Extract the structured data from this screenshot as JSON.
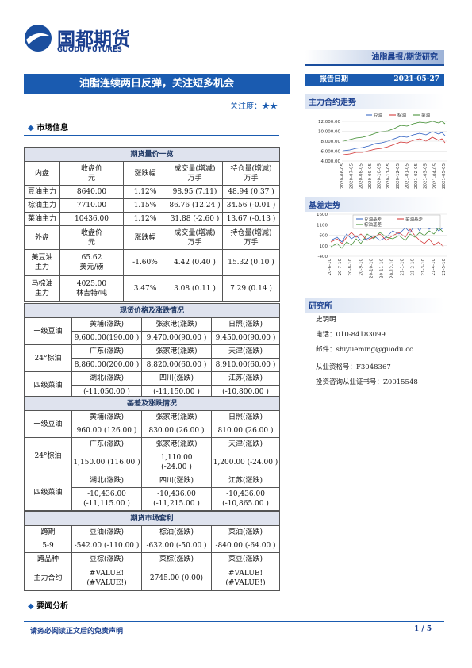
{
  "header": {
    "logo_cn": "国都期货",
    "logo_en": "GUODU FUTURES",
    "column": "油脂晨报/期货研究",
    "date_label": "报告日期",
    "date": "2021-05-27"
  },
  "title": "油脂连续两日反弹，关注短多机会",
  "attention": "关注度：★★",
  "market_section": "市场信息",
  "futures": {
    "title": "期货量价一览",
    "rows": [
      [
        "内盘",
        "收盘价\n元",
        "涨跌幅",
        "成交量(增减)\n万手",
        "持仓量(增减)\n万手"
      ],
      [
        "豆油主力",
        "8640.00",
        "1.12%",
        "98.95 (7.11)",
        "48.94 (0.37 )"
      ],
      [
        "棕油主力",
        "7710.00",
        "1.15%",
        "86.76 (12.24 )",
        "34.56 (-0.01 )"
      ],
      [
        "菜油主力",
        "10436.00",
        "1.12%",
        "31.88 (-2.60 )",
        "13.67 (-0.13 )"
      ],
      [
        "外盘",
        "收盘价\n元",
        "涨跌幅",
        "成交量(增减)\n万手",
        "持仓量(增减)\n万手"
      ],
      [
        "美豆油\n主力",
        "65.62\n美元/磅",
        "-1.60%",
        "4.42 (0.40 )",
        "15.32 (0.10 )"
      ],
      [
        "马棕油\n主力",
        "4025.00\n林吉特/吨",
        "3.47%",
        "3.08 (0.11 )",
        "7.29 (0.14 )"
      ]
    ]
  },
  "spot": {
    "title": "现货价格及涨跌情况",
    "groups": [
      {
        "label": "一级豆油",
        "places": [
          "黄埔(涨跌)",
          "张家港(涨跌)",
          "日照(涨跌)"
        ],
        "values": [
          "9,600.00(190.00 )",
          "9,470.00(90.00 )",
          "9,450.00(90.00 )"
        ]
      },
      {
        "label": "24°棕油",
        "places": [
          "广东(涨跌)",
          "张家港(涨跌)",
          "天津(涨跌)"
        ],
        "values": [
          "8,860.00(200.00 )",
          "8,820.00(60.00 )",
          "8,910.00(60.00 )"
        ]
      },
      {
        "label": "四级菜油",
        "places": [
          "湖北(涨跌)",
          "四川(涨跌)",
          "江苏(涨跌)"
        ],
        "values": [
          "(-11,050.00 )",
          "(-11,150.00 )",
          "(-10,800.00 )"
        ]
      }
    ]
  },
  "basis": {
    "title": "基差及涨跌情况",
    "groups": [
      {
        "label": "一级豆油",
        "places": [
          "黄埔(涨跌)",
          "张家港(涨跌)",
          "日照(涨跌)"
        ],
        "values": [
          "960.00 (126.00 )",
          "830.00 (26.00 )",
          "810.00 (26.00 )"
        ]
      },
      {
        "label": "24°棕油",
        "places": [
          "广东(涨跌)",
          "张家港(涨跌)",
          "天津(涨跌)"
        ],
        "values": [
          "1,150.00 (116.00 )",
          "1,110.00\n(-24.00 )",
          "1,200.00 (-24.00 )"
        ]
      },
      {
        "label": "四级菜油",
        "places": [
          "湖北(涨跌)",
          "四川(涨跌)",
          "江苏(涨跌)"
        ],
        "values": [
          "-10,436.00\n(-11,115.00 )",
          "-10,436.00\n(-11,215.00 )",
          "-10,436.00\n(-10,865.00 )"
        ]
      }
    ]
  },
  "arbitrage": {
    "title": "期货市场套利",
    "rows": [
      [
        "跨期",
        "豆油(涨跌)",
        "棕油(涨跌)",
        "菜油(涨跌)"
      ],
      [
        "5-9",
        "-542.00 (-110.00 )",
        "-632.00 (-50.00 )",
        "-840.00 (-64.00 )"
      ],
      [
        "跨品种",
        "豆棕(涨跌)",
        "菜棕(涨跌)",
        "菜豆(涨跌)"
      ],
      [
        "主力合约",
        "#VALUE!\n(#VALUE!)",
        "2745.00   (0.00)",
        "#VALUE!\n(#VALUE!)"
      ]
    ]
  },
  "news_section": "要闻分析",
  "sidebar": {
    "chart1": {
      "title": "主力合约走势",
      "legend": [
        "豆油",
        "棕油",
        "菜油"
      ],
      "yticks": [
        "12,000.00",
        "10,000.00",
        "8,000.00",
        "6,000.00",
        "4,000.00"
      ],
      "xticks": [
        "2020-06-05",
        "2020-07-05",
        "2020-08-05",
        "2020-09-05",
        "2020-10-05",
        "2020-11-05",
        "2020-12-05",
        "2021-01-05",
        "2021-02-05",
        "2021-03-05",
        "2021-04-05",
        "2021-05-05"
      ]
    },
    "chart2": {
      "title": "基差走势",
      "legend": [
        "豆油基差",
        "菜油基差",
        "棕油基差"
      ],
      "yticks": [
        "1600",
        "1100",
        "600",
        "100",
        "-400"
      ],
      "xticks": [
        "20-6-10",
        "20-7-10",
        "20-8-10",
        "20-9-10",
        "20-10-10",
        "20-11-10",
        "20-12-10",
        "21-1-10",
        "21-2-10",
        "21-3-10",
        "21-4-10",
        "21-5-10"
      ]
    },
    "institute": "研究所",
    "analyst": "史玥明",
    "phone": "电话：010-84183099",
    "email": "邮件：shiyueming@guodu.cc",
    "license": "从业资格号：F3048367",
    "cert": "投资咨询从业证书号：Z0015548"
  },
  "footer": {
    "disclaimer": "请务必阅读正文后的免责声明",
    "page": "1 / 5"
  }
}
